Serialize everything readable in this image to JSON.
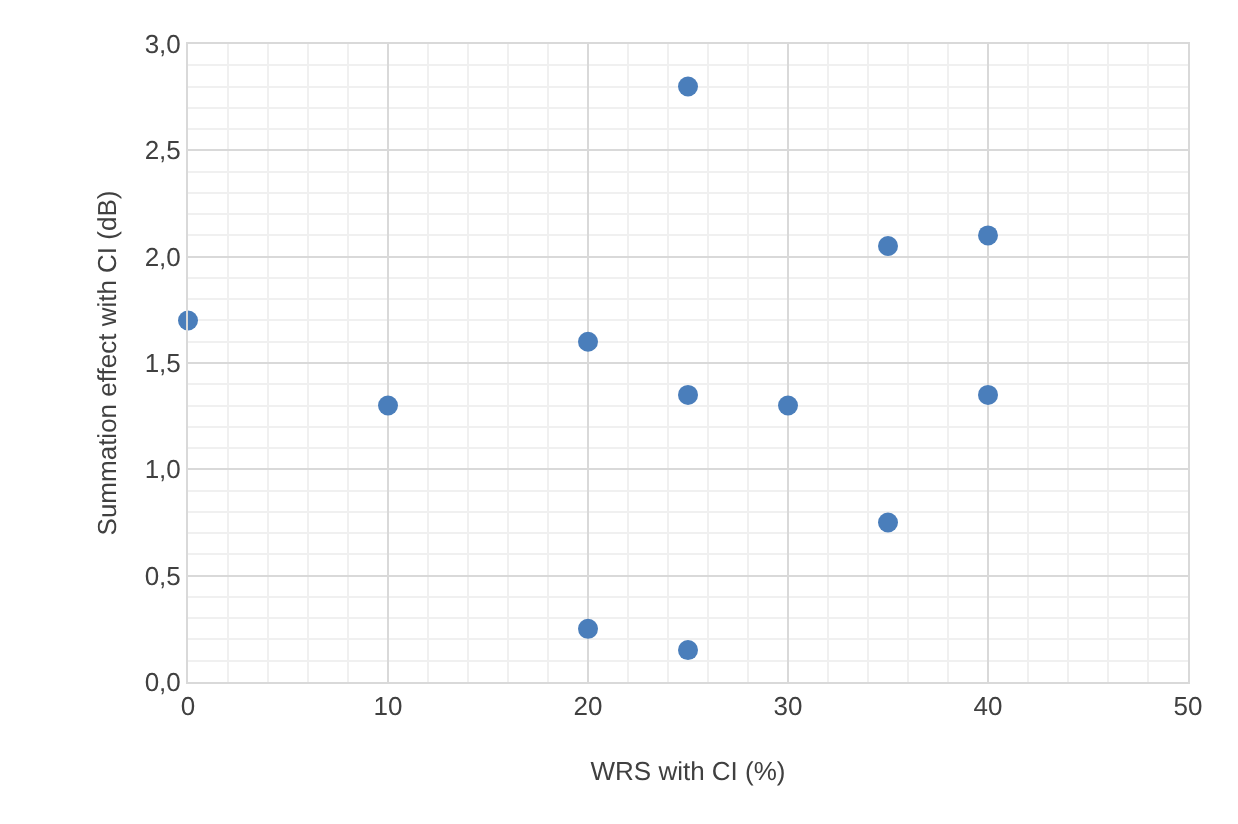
{
  "chart_data": {
    "type": "scatter",
    "xlabel": "WRS with CI (%)",
    "ylabel": "Summation effect with CI (dB)",
    "x": [
      0,
      10,
      20,
      20,
      25,
      25,
      25,
      30,
      35,
      35,
      40,
      40
    ],
    "values": [
      1.7,
      1.3,
      1.6,
      0.25,
      2.8,
      1.35,
      0.15,
      1.3,
      2.05,
      0.75,
      2.1,
      1.35
    ],
    "color": "#4a7ebb",
    "marker": "circle",
    "grid": true,
    "xlim": [
      0,
      50
    ],
    "xticks": [
      0,
      10,
      20,
      30,
      40,
      50
    ],
    "ylim": [
      0,
      3
    ],
    "yticks": [
      {
        "value": 0,
        "label": "0,0"
      },
      {
        "value": 0.5,
        "label": "0,5"
      },
      {
        "value": 1,
        "label": "1,0"
      },
      {
        "value": 1.5,
        "label": "1,5"
      },
      {
        "value": 2,
        "label": "2,0"
      },
      {
        "value": 2.5,
        "label": "2,5"
      },
      {
        "value": 3,
        "label": "3,0"
      }
    ]
  }
}
